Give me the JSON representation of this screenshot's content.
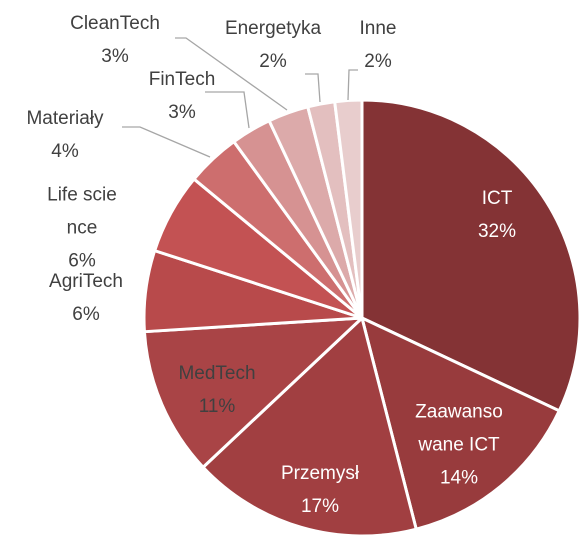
{
  "chart_data": {
    "type": "pie",
    "categories": [
      "ICT",
      "Zaawansowane ICT",
      "Przemysł",
      "MedTech",
      "AgriTech",
      "Life science",
      "Materiały",
      "FinTech",
      "CleanTech",
      "Energetyka",
      "Inne"
    ],
    "values": [
      32,
      14,
      17,
      11,
      6,
      6,
      4,
      3,
      3,
      2,
      2
    ],
    "value_labels": [
      "32%",
      "14%",
      "17%",
      "11%",
      "6%",
      "6%",
      "4%",
      "3%",
      "3%",
      "2%",
      "2%"
    ],
    "colors": [
      "#843335",
      "#983b3d",
      "#a13f41",
      "#a94446",
      "#b84a4b",
      "#c35253",
      "#cd6e6e",
      "#d69292",
      "#dcaaaa",
      "#e3bfbf",
      "#e8cdcd"
    ]
  }
}
